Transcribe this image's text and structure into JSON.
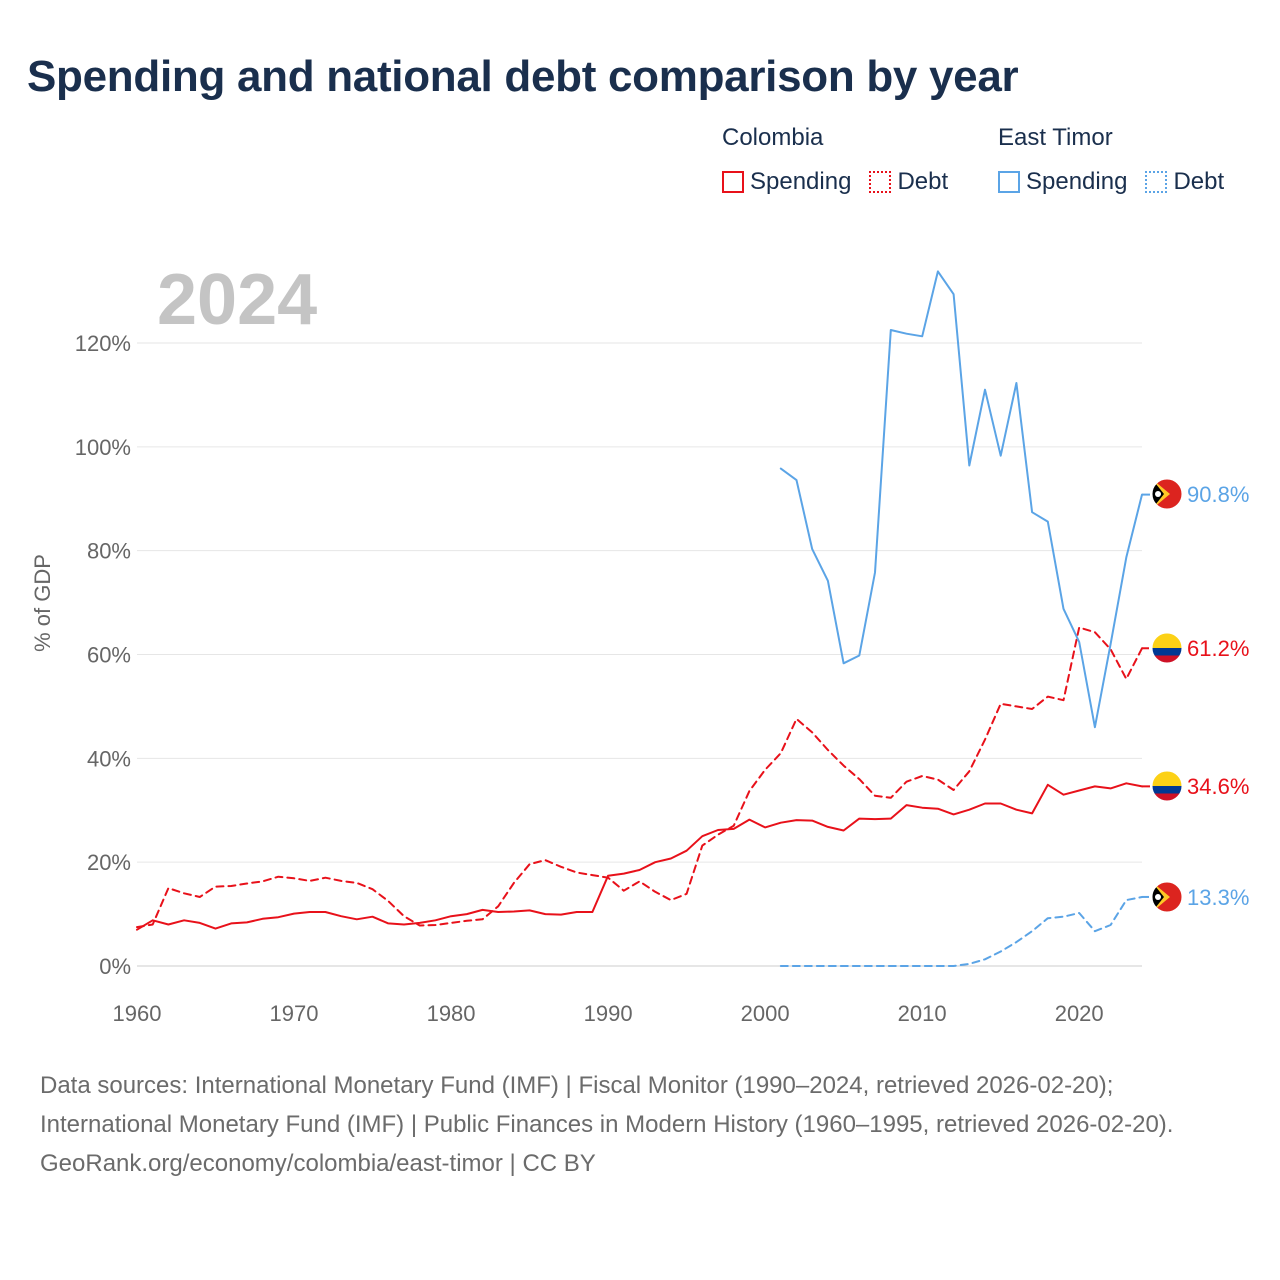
{
  "title": "Spending and national debt comparison by year",
  "legend": {
    "groups": [
      {
        "name": "Colombia",
        "items": [
          {
            "label": "Spending",
            "style": "solid",
            "color": "#e8111a"
          },
          {
            "label": "Debt",
            "style": "dotted",
            "color": "#e8111a"
          }
        ]
      },
      {
        "name": "East Timor",
        "items": [
          {
            "label": "Spending",
            "style": "solid",
            "color": "#5ba4e6"
          },
          {
            "label": "Debt",
            "style": "dotted",
            "color": "#5ba4e6"
          }
        ]
      }
    ]
  },
  "footer": {
    "sources": "Data sources: International Monetary Fund (IMF) | Fiscal Monitor (1990–2024, retrieved 2026-02-20); International Monetary Fund (IMF) | Public Finances in Modern History (1960–1995, retrieved 2026-02-20).",
    "credit": "GeoRank.org/economy/colombia/east-timor | CC BY"
  },
  "chart_data": {
    "type": "line",
    "year_label": "2024",
    "ylabel": "% of GDP",
    "xlabel": "",
    "xlim": [
      1960,
      2024
    ],
    "ylim": [
      0,
      120
    ],
    "x_ticks": [
      1960,
      1970,
      1980,
      1990,
      2000,
      2010,
      2020
    ],
    "y_ticks": [
      0,
      20,
      40,
      60,
      80,
      100,
      120
    ],
    "y_tick_labels": [
      "0%",
      "20%",
      "40%",
      "60%",
      "80%",
      "100%",
      "120%"
    ],
    "grid": true,
    "series": [
      {
        "name": "Colombia Spending",
        "country": "Colombia",
        "metric": "Spending",
        "color": "#e8111a",
        "dash": "solid",
        "flag": "colombia",
        "end_label": "34.6%",
        "x": [
          1960,
          1961,
          1962,
          1963,
          1964,
          1965,
          1966,
          1967,
          1968,
          1969,
          1970,
          1971,
          1972,
          1973,
          1974,
          1975,
          1976,
          1977,
          1978,
          1979,
          1980,
          1981,
          1982,
          1983,
          1984,
          1985,
          1986,
          1987,
          1988,
          1989,
          1990,
          1991,
          1992,
          1993,
          1994,
          1995,
          1996,
          1997,
          1998,
          1999,
          2000,
          2001,
          2002,
          2003,
          2004,
          2005,
          2006,
          2007,
          2008,
          2009,
          2010,
          2011,
          2012,
          2013,
          2014,
          2015,
          2016,
          2017,
          2018,
          2019,
          2020,
          2021,
          2022,
          2023,
          2024
        ],
        "y": [
          7.0,
          8.8,
          8.0,
          8.8,
          8.3,
          7.2,
          8.2,
          8.4,
          9.1,
          9.4,
          10.1,
          10.4,
          10.4,
          9.6,
          9.0,
          9.5,
          8.2,
          8.0,
          8.3,
          8.8,
          9.6,
          10.0,
          10.8,
          10.4,
          10.5,
          10.7,
          10.0,
          9.9,
          10.4,
          10.4,
          17.4,
          17.8,
          18.5,
          20.0,
          20.7,
          22.2,
          25.0,
          26.2,
          26.4,
          28.2,
          26.7,
          27.6,
          28.1,
          28.0,
          26.8,
          26.1,
          28.4,
          28.3,
          28.4,
          31.0,
          30.5,
          30.3,
          29.2,
          30.1,
          31.3,
          31.3,
          30.1,
          29.4,
          34.9,
          33.0,
          33.8,
          34.6,
          34.2,
          35.2,
          34.6
        ]
      },
      {
        "name": "Colombia Debt",
        "country": "Colombia",
        "metric": "Debt",
        "color": "#e8111a",
        "dash": "dashed",
        "flag": "colombia",
        "end_label": "61.2%",
        "x": [
          1960,
          1961,
          1962,
          1963,
          1964,
          1965,
          1966,
          1967,
          1968,
          1969,
          1970,
          1971,
          1972,
          1973,
          1974,
          1975,
          1976,
          1977,
          1978,
          1979,
          1980,
          1981,
          1982,
          1983,
          1984,
          1985,
          1986,
          1987,
          1988,
          1989,
          1990,
          1991,
          1992,
          1993,
          1994,
          1995,
          1996,
          1997,
          1998,
          1999,
          2000,
          2001,
          2002,
          2003,
          2004,
          2005,
          2006,
          2007,
          2008,
          2009,
          2010,
          2011,
          2012,
          2013,
          2014,
          2015,
          2016,
          2017,
          2018,
          2019,
          2020,
          2021,
          2022,
          2023,
          2024
        ],
        "y": [
          7.5,
          8.0,
          15.0,
          14.0,
          13.3,
          15.3,
          15.4,
          15.9,
          16.3,
          17.2,
          16.9,
          16.4,
          17.0,
          16.4,
          16.0,
          14.8,
          12.5,
          9.6,
          7.8,
          7.9,
          8.3,
          8.7,
          9.0,
          11.5,
          16.0,
          19.6,
          20.4,
          19.1,
          18.0,
          17.5,
          17.0,
          14.5,
          16.3,
          14.3,
          12.7,
          13.9,
          23.2,
          25.3,
          27.0,
          33.7,
          37.8,
          41.0,
          47.6,
          45.0,
          41.6,
          38.6,
          36.0,
          32.8,
          32.4,
          35.5,
          36.6,
          35.9,
          33.9,
          37.5,
          43.6,
          50.5,
          50.0,
          49.5,
          51.9,
          51.2,
          65.2,
          64.3,
          61.0,
          55.3,
          61.2
        ]
      },
      {
        "name": "East Timor Spending",
        "country": "East Timor",
        "metric": "Spending",
        "color": "#5ba4e6",
        "dash": "solid",
        "flag": "east-timor",
        "end_label": "90.8%",
        "x": [
          2001,
          2002,
          2003,
          2004,
          2005,
          2006,
          2007,
          2008,
          2009,
          2010,
          2011,
          2012,
          2013,
          2014,
          2015,
          2016,
          2017,
          2018,
          2019,
          2020,
          2021,
          2022,
          2023,
          2024
        ],
        "y": [
          95.8,
          93.6,
          80.3,
          74.2,
          58.3,
          59.8,
          75.8,
          122.5,
          121.8,
          121.3,
          133.8,
          129.4,
          96.4,
          111.0,
          98.3,
          112.3,
          87.4,
          85.6,
          68.8,
          62.4,
          46.0,
          62.0,
          78.7,
          90.8
        ]
      },
      {
        "name": "East Timor Debt",
        "country": "East Timor",
        "metric": "Debt",
        "color": "#5ba4e6",
        "dash": "dashed",
        "flag": "east-timor",
        "end_label": "13.3%",
        "x": [
          2001,
          2002,
          2003,
          2004,
          2005,
          2006,
          2007,
          2008,
          2009,
          2010,
          2011,
          2012,
          2013,
          2014,
          2015,
          2016,
          2017,
          2018,
          2019,
          2020,
          2021,
          2022,
          2023,
          2024
        ],
        "y": [
          0,
          0,
          0,
          0,
          0,
          0,
          0,
          0,
          0,
          0,
          0,
          0,
          0.4,
          1.3,
          2.8,
          4.6,
          6.7,
          9.2,
          9.5,
          10.2,
          6.7,
          7.9,
          12.7,
          13.3
        ]
      }
    ]
  }
}
